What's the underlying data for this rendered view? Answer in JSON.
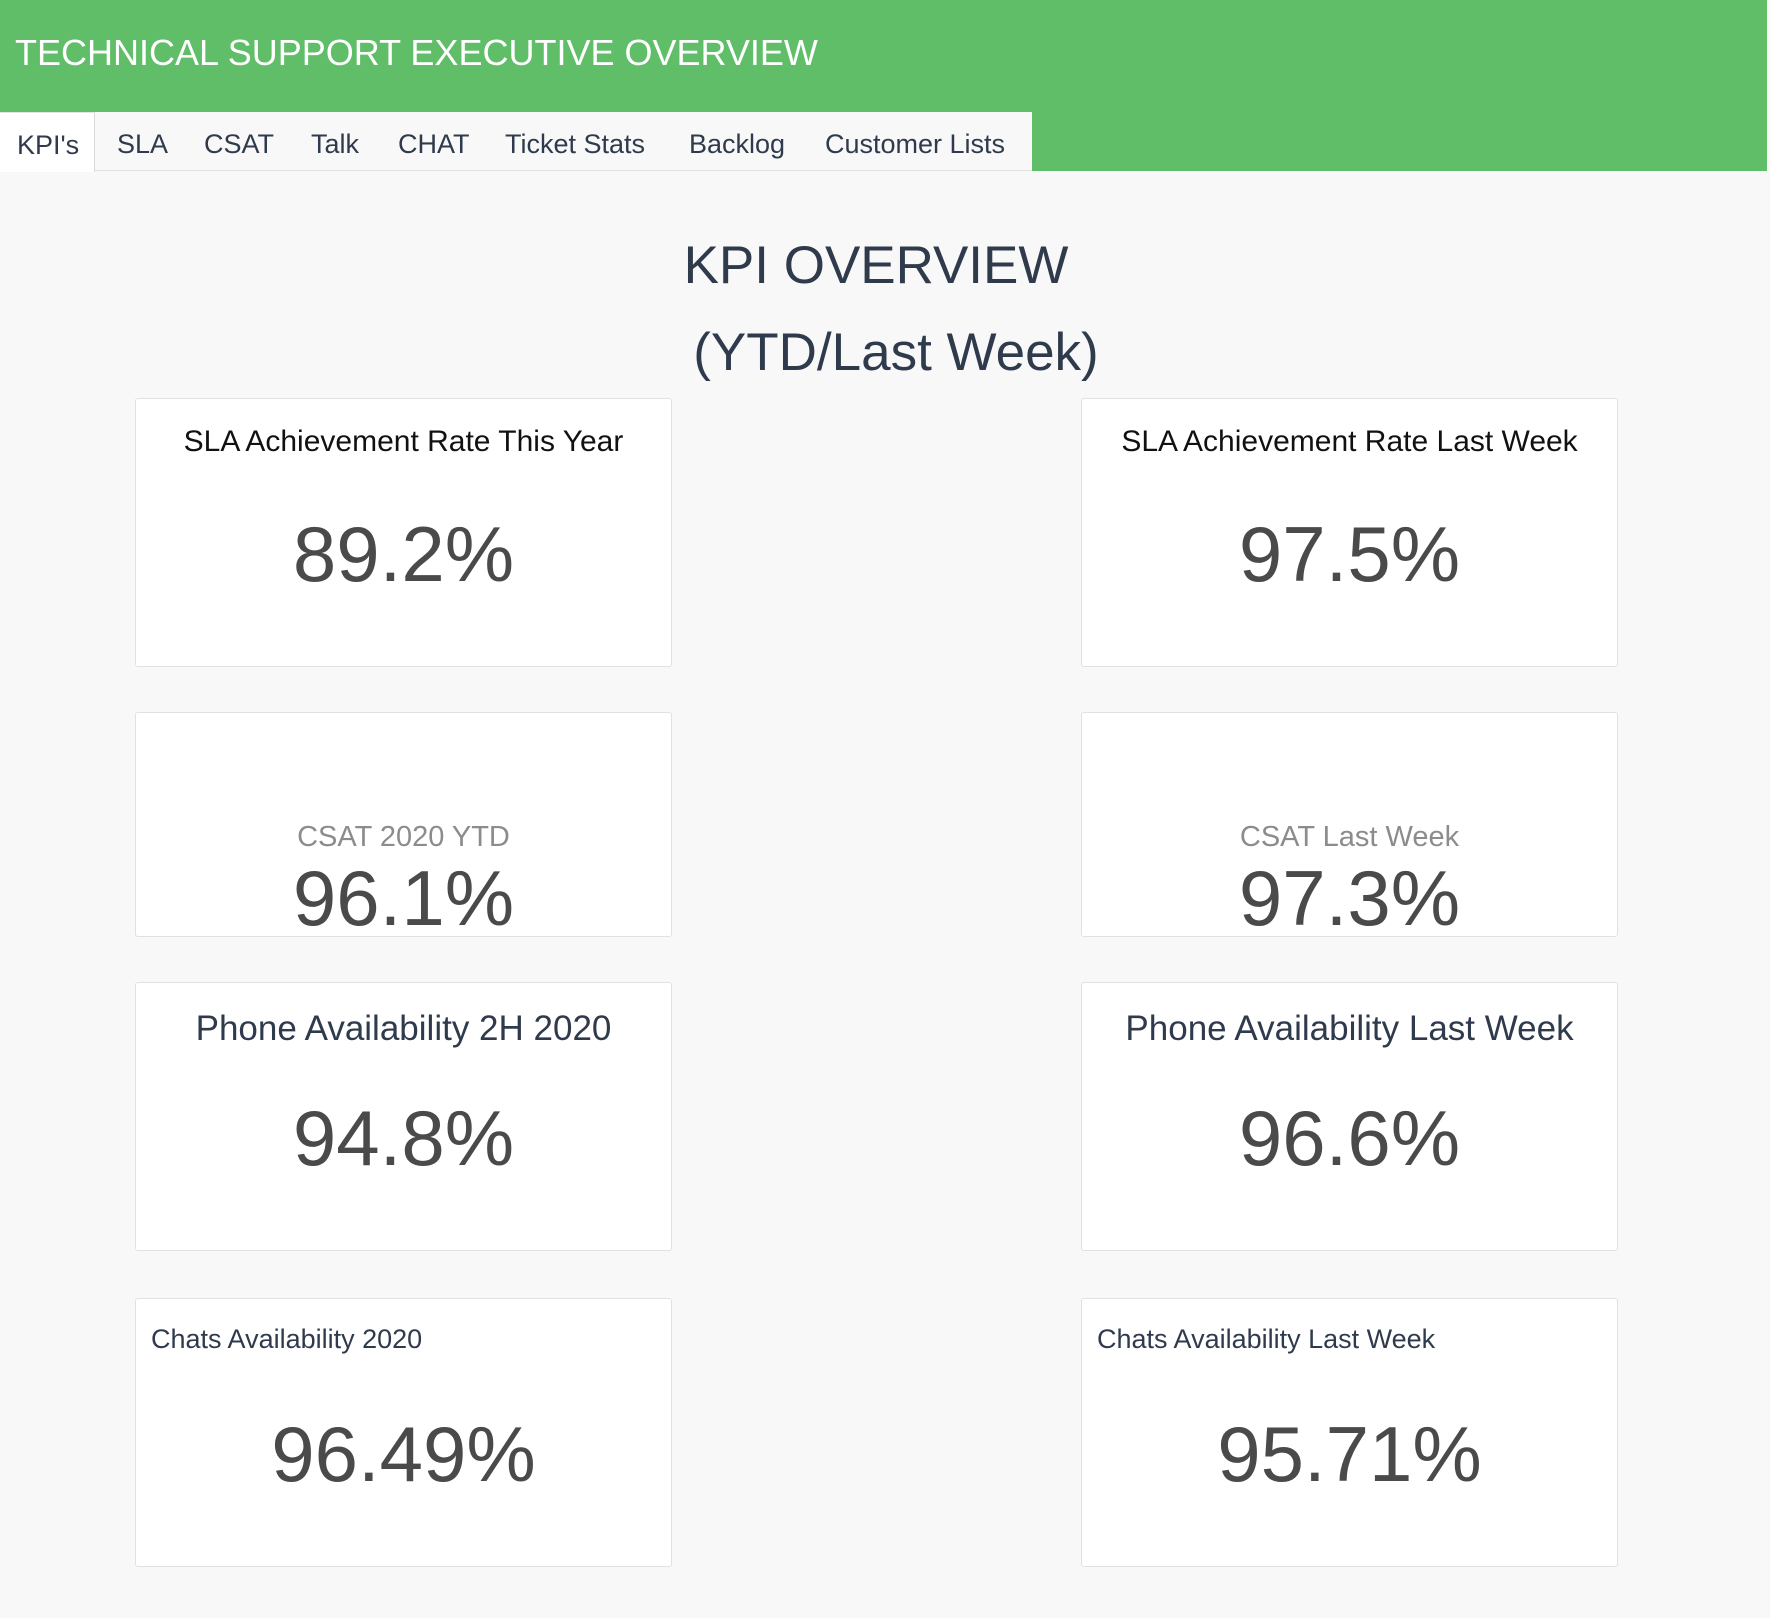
{
  "header": {
    "title": "TECHNICAL SUPPORT EXECUTIVE OVERVIEW",
    "background_color": "#5fbe67"
  },
  "tabs": [
    {
      "label": "KPI's",
      "active": true
    },
    {
      "label": "SLA",
      "active": false
    },
    {
      "label": "CSAT",
      "active": false
    },
    {
      "label": "Talk",
      "active": false
    },
    {
      "label": "CHAT",
      "active": false
    },
    {
      "label": "Ticket Stats",
      "active": false
    },
    {
      "label": "Backlog",
      "active": false
    },
    {
      "label": "Customer Lists",
      "active": false
    }
  ],
  "page": {
    "heading": "KPI OVERVIEW",
    "subheading": "(YTD/Last Week)"
  },
  "cards": {
    "sla_year": {
      "label": "SLA Achievement Rate This Year",
      "value": "89.2%"
    },
    "sla_week": {
      "label": "SLA Achievement Rate Last Week",
      "value": "97.5%"
    },
    "csat_ytd": {
      "label": "CSAT 2020 YTD",
      "value": "96.1%"
    },
    "csat_week": {
      "label": "CSAT Last Week",
      "value": "97.3%"
    },
    "phone_2h": {
      "label": "Phone Availability 2H 2020",
      "value": "94.8%"
    },
    "phone_week": {
      "label": "Phone Availability Last Week",
      "value": "96.6%"
    },
    "chat_year": {
      "label": "Chats Availability 2020",
      "value": "96.49%"
    },
    "chat_week": {
      "label": "Chats Availability Last Week",
      "value": "95.71%"
    }
  }
}
